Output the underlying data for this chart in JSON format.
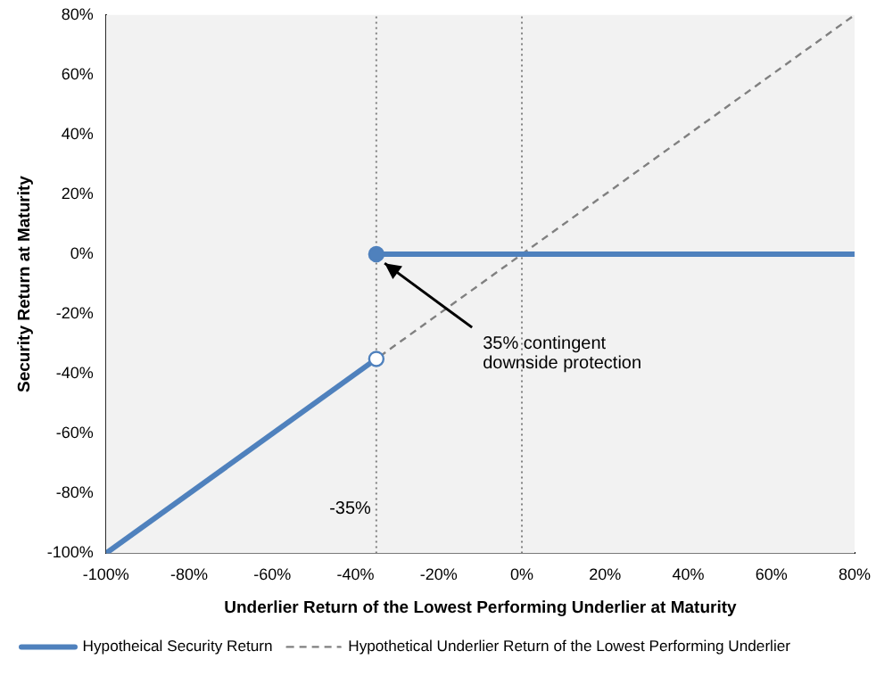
{
  "chart_data": {
    "type": "line",
    "xlabel": "Underlier Return of the Lowest Performing Underlier at Maturity",
    "ylabel": "Security Return at Maturity",
    "series": [
      {
        "name": "Hypotheical Security Return",
        "color": "#4f81bd",
        "x": [
          -100,
          -35
        ],
        "values": [
          -100,
          -35
        ],
        "line_style": "solid",
        "marker": "circle"
      },
      {
        "color": "#4f81bd",
        "x": [
          -35,
          80
        ],
        "values": [
          0,
          0
        ],
        "line_style": "solid",
        "marker": "circle"
      },
      {
        "name": "Hypothetical Underlier Return of the Lowest Performing Underlier",
        "color": "#808080",
        "x": [
          -100,
          80
        ],
        "values": [
          -100,
          80
        ],
        "line_style": "dashed",
        "marker": "none"
      }
    ],
    "xlim": [
      -100,
      80
    ],
    "xticks": [
      {
        "value": -100,
        "label": "-100%"
      },
      {
        "value": -80,
        "label": "-80%"
      },
      {
        "value": -60,
        "label": "-60%"
      },
      {
        "value": -40,
        "label": "-40%"
      },
      {
        "value": -20,
        "label": "-20%"
      },
      {
        "value": 0,
        "label": "0%"
      },
      {
        "value": 20,
        "label": "20%"
      },
      {
        "value": 40,
        "label": "40%"
      },
      {
        "value": 60,
        "label": "60%"
      },
      {
        "value": 80,
        "label": "80%"
      }
    ],
    "ylim": [
      -100,
      80
    ],
    "yticks": [
      {
        "value": -100,
        "label": "-100%"
      },
      {
        "value": -80,
        "label": "-80%"
      },
      {
        "value": -60,
        "label": "-60%"
      },
      {
        "value": -40,
        "label": "-40%"
      },
      {
        "value": -20,
        "label": "-20%"
      },
      {
        "value": 0,
        "label": "0%"
      },
      {
        "value": 20,
        "label": "20%"
      },
      {
        "value": 40,
        "label": "40%"
      },
      {
        "value": 60,
        "label": "60%"
      },
      {
        "value": 80,
        "label": "80%"
      }
    ],
    "ref_lines": [
      {
        "axis": "x",
        "value": -35,
        "label": "-35%",
        "line_style": "dotted",
        "color": "#808080"
      },
      {
        "axis": "x",
        "value": 0,
        "line_style": "dotted",
        "color": "#808080"
      }
    ],
    "annotations": [
      {
        "text": "35% contingent downside protection",
        "x": -33,
        "y": -3
      }
    ],
    "grid": false,
    "legend": "bottom"
  }
}
